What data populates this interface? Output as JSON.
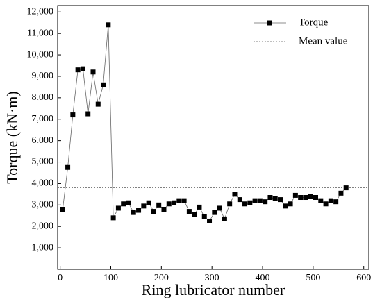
{
  "chart_data": {
    "type": "line",
    "xlabel": "Ring lubricator number",
    "ylabel": "Torque (kN·m)",
    "x": [
      5,
      15,
      25,
      35,
      45,
      55,
      65,
      75,
      85,
      95,
      105,
      115,
      125,
      135,
      145,
      155,
      165,
      175,
      185,
      195,
      205,
      215,
      225,
      235,
      245,
      255,
      265,
      275,
      285,
      295,
      305,
      315,
      325,
      335,
      345,
      355,
      365,
      375,
      385,
      395,
      405,
      415,
      425,
      435,
      445,
      455,
      465,
      475,
      485,
      495,
      505,
      515,
      525,
      535,
      545,
      555,
      565
    ],
    "series": [
      {
        "name": "Torque",
        "color": "#000000",
        "values": [
          2800,
          4750,
          7200,
          9300,
          9350,
          7250,
          9200,
          7700,
          8600,
          11400,
          2400,
          2850,
          3050,
          3100,
          2650,
          2750,
          2950,
          3100,
          2700,
          3000,
          2800,
          3050,
          3100,
          3200,
          3200,
          2700,
          2550,
          2900,
          2450,
          2250,
          2650,
          2850,
          2350,
          3050,
          3500,
          3250,
          3050,
          3100,
          3200,
          3200,
          3150,
          3350,
          3300,
          3250,
          2950,
          3050,
          3450,
          3350,
          3350,
          3400,
          3350,
          3200,
          3050,
          3200,
          3150,
          3550,
          3800
        ]
      }
    ],
    "reference_lines": [
      {
        "name": "Mean value",
        "value": 3800
      }
    ],
    "xlim": [
      -5,
      610
    ],
    "xticks": [
      0,
      100,
      200,
      300,
      400,
      500,
      600
    ],
    "ylim": [
      0,
      12300
    ],
    "yticks": [
      {
        "value": 1000,
        "label": "1,000"
      },
      {
        "value": 2000,
        "label": "2,000"
      },
      {
        "value": 3000,
        "label": "3,000"
      },
      {
        "value": 4000,
        "label": "4,000"
      },
      {
        "value": 5000,
        "label": "5,000"
      },
      {
        "value": 6000,
        "label": "6,000"
      },
      {
        "value": 7000,
        "label": "7,000"
      },
      {
        "value": 8000,
        "label": "8,000"
      },
      {
        "value": 9000,
        "label": "9,000"
      },
      {
        "value": 10000,
        "label": "10,000"
      },
      {
        "value": 11000,
        "label": "11,000"
      },
      {
        "value": 12000,
        "label": "12,000"
      }
    ],
    "legend": "upper right"
  }
}
